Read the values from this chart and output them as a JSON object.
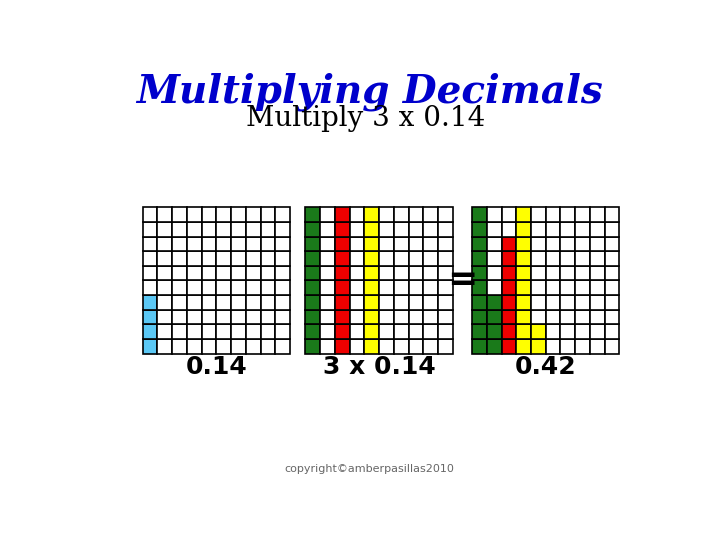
{
  "title": "Multiplying Decimals",
  "subtitle": "Multiply 3 x 0.14",
  "label1": "0.14",
  "label2": "3 x 0.14",
  "label3": "0.42",
  "copyright": "copyright©amberpasillas2010",
  "title_color": "#0000CC",
  "label_color": "#000000",
  "bg_color": "#FFFFFF",
  "grid_rows": 10,
  "grid_cols": 10,
  "colors": {
    "cyan": "#5BC8F5",
    "green": "#1A7A1A",
    "red": "#EE0000",
    "yellow": "#FFFF00",
    "white": "#FFFFFF",
    "black": "#000000"
  },
  "title_fontsize": 28,
  "subtitle_fontsize": 20,
  "label_fontsize": 18,
  "cell_size": 19
}
